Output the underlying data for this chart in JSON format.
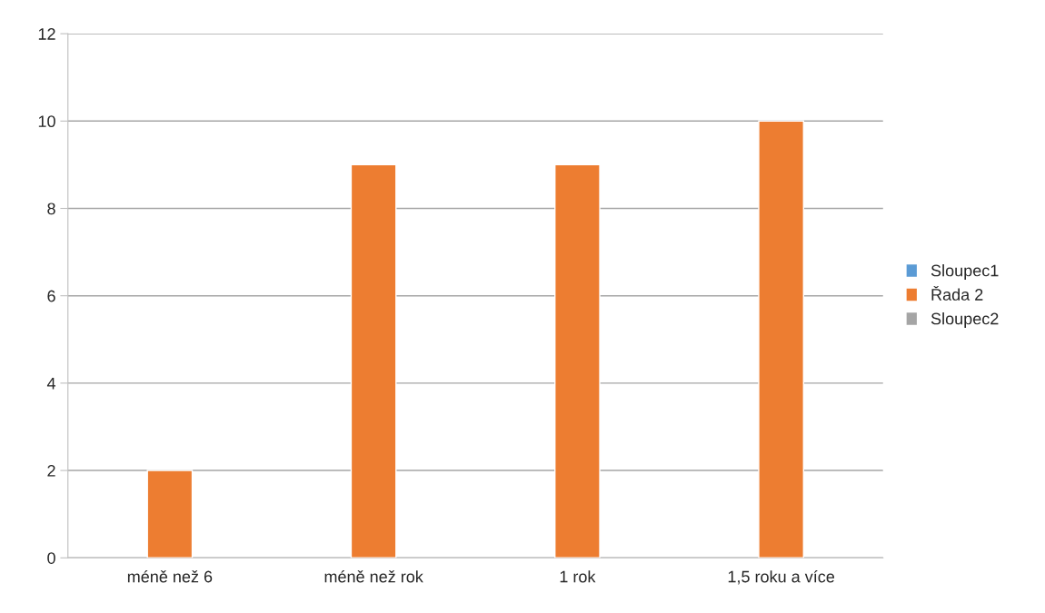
{
  "chart_data": {
    "type": "bar",
    "categories": [
      "méně než 6",
      "méně než rok",
      "1 rok",
      "1,5 roku a více"
    ],
    "series": [
      {
        "name": "Sloupec1",
        "color": "#5b9bd5",
        "values": [
          null,
          null,
          null,
          null
        ]
      },
      {
        "name": "Řada 2",
        "color": "#ed7d31",
        "values": [
          2,
          9,
          9,
          10
        ]
      },
      {
        "name": "Sloupec2",
        "color": "#a5a5a5",
        "values": [
          null,
          null,
          null,
          null
        ]
      }
    ],
    "ylim": [
      0,
      12
    ],
    "yticks": [
      0,
      2,
      4,
      6,
      8,
      10,
      12
    ],
    "grid": "y",
    "legend": "right"
  }
}
